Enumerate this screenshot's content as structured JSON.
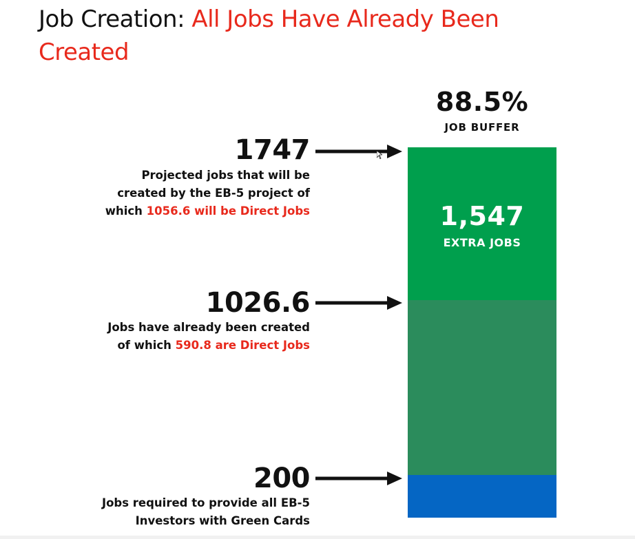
{
  "title": {
    "prefix": "Job Creation:",
    "highlight_line1": "All Jobs Have Already Been",
    "highlight_line2": "Created"
  },
  "colors": {
    "red": "#e8291c",
    "extra_jobs_green": "#009f4d",
    "created_green": "#2b8c5c",
    "required_blue": "#0566c4"
  },
  "chart_data": {
    "type": "bar",
    "stacked": true,
    "ylim": [
      0,
      1747
    ],
    "segments": [
      {
        "name": "Jobs required",
        "from": 0,
        "to": 200
      },
      {
        "name": "Jobs already created",
        "from": 200,
        "to": 1026.6
      },
      {
        "name": "Extra jobs",
        "from": 1026.6,
        "to": 1747
      }
    ],
    "buffer": {
      "value": "88.5%",
      "label": "JOB BUFFER"
    },
    "extra": {
      "value": "1,547",
      "label": "EXTRA JOBS"
    },
    "annotations": [
      {
        "value": "1747",
        "text_line1": "Projected jobs that will be",
        "text_line2": "created by the EB-5 project of",
        "text_line3_prefix": "which ",
        "text_line3_highlight": "1056.6 will be Direct Jobs"
      },
      {
        "value": "1026.6",
        "text_line1": "Jobs have already been created",
        "text_line2_prefix": "of which ",
        "text_line2_highlight": "590.8 are Direct Jobs"
      },
      {
        "value": "200",
        "text_line1": "Jobs required to provide all EB-5",
        "text_line2": "Investors with Green Cards"
      }
    ]
  }
}
